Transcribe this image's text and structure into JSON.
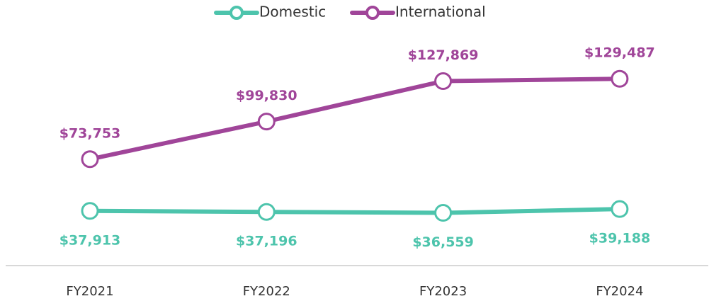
{
  "chart_data": {
    "type": "line",
    "categories": [
      "FY2021",
      "FY2022",
      "FY2023",
      "FY2024"
    ],
    "series": [
      {
        "name": "Domestic",
        "color": "#4dc4ac",
        "values": [
          37913,
          37196,
          36559,
          39188
        ],
        "value_labels": [
          "$37,913",
          "$37,196",
          "$36,559",
          "$39,188"
        ]
      },
      {
        "name": "International",
        "color": "#a04599",
        "values": [
          73753,
          99830,
          127869,
          129487
        ],
        "value_labels": [
          "$73,753",
          "$99,830",
          "$127,869",
          "$129,487"
        ]
      }
    ],
    "legend": "top"
  }
}
